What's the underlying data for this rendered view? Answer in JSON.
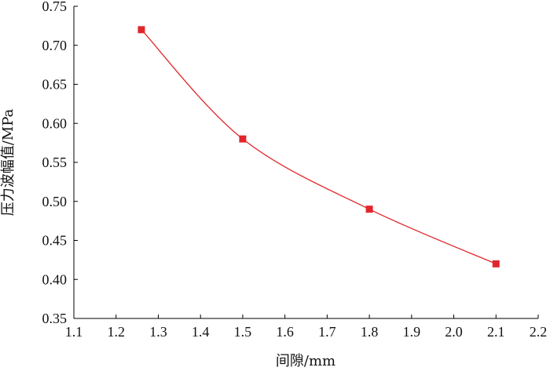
{
  "chart_data": {
    "type": "line",
    "title": "",
    "xlabel": "间隙/mm",
    "ylabel": "压力波幅值/MPa",
    "xlim": [
      1.1,
      2.2
    ],
    "ylim": [
      0.35,
      0.75
    ],
    "xticks": [
      "1.1",
      "1.2",
      "1.3",
      "1.4",
      "1.5",
      "1.6",
      "1.7",
      "1.8",
      "1.9",
      "2.0",
      "2.1",
      "2.2"
    ],
    "yticks": [
      "0.35",
      "0.40",
      "0.45",
      "0.50",
      "0.55",
      "0.60",
      "0.65",
      "0.70",
      "0.75"
    ],
    "grid": false,
    "legend": "none",
    "series": [
      {
        "color": "#e0262b",
        "marker": "square",
        "smooth": true,
        "x": [
          1.26,
          1.5,
          1.8,
          2.1
        ],
        "y": [
          0.72,
          0.58,
          0.49,
          0.42
        ]
      }
    ]
  }
}
